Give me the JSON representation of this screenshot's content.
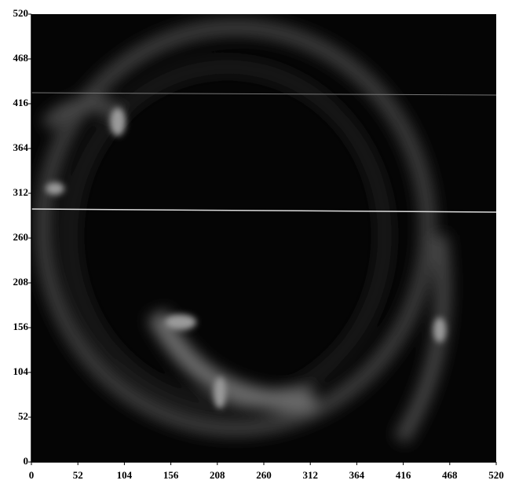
{
  "chart_data": {
    "type": "image",
    "xlim": [
      0,
      520
    ],
    "ylim": [
      0,
      520
    ],
    "xticks": [
      0,
      52,
      104,
      156,
      208,
      260,
      312,
      364,
      416,
      468,
      520
    ],
    "yticks": [
      0,
      52,
      104,
      156,
      208,
      260,
      312,
      364,
      416,
      468,
      520
    ]
  }
}
